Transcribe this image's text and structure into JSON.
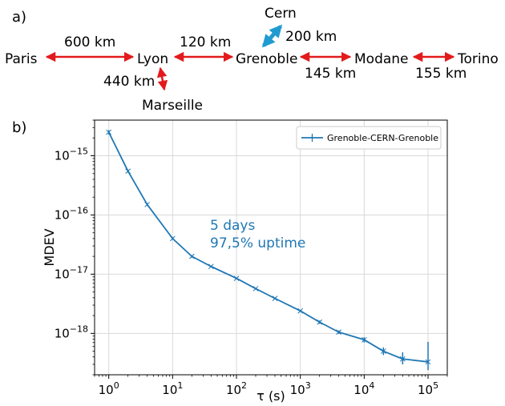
{
  "panel_a": {
    "label": "a)",
    "cities": [
      "Paris",
      "Lyon",
      "Grenoble",
      "Modane",
      "Torino",
      "Marseille",
      "Cern"
    ],
    "distances": [
      "600 km",
      "120 km",
      "145 km",
      "155 km",
      "440 km",
      "200 km"
    ],
    "colors": {
      "link": "#e31a1c",
      "cern_link": "#1f9bd1"
    }
  },
  "panel_b": {
    "label": "b)"
  },
  "chart_data": {
    "type": "line",
    "xlabel": "τ (s)",
    "ylabel": "MDEV",
    "xscale": "log",
    "yscale": "log",
    "xlim": [
      0.6,
      200000
    ],
    "ylim": [
      2e-19,
      4e-15
    ],
    "grid": true,
    "legend_position": "top-right",
    "x_ticks": [
      {
        "value": 1,
        "base": "10",
        "exp": "0"
      },
      {
        "value": 10,
        "base": "10",
        "exp": "1"
      },
      {
        "value": 100,
        "base": "10",
        "exp": "2"
      },
      {
        "value": 1000,
        "base": "10",
        "exp": "3"
      },
      {
        "value": 10000,
        "base": "10",
        "exp": "4"
      },
      {
        "value": 100000,
        "base": "10",
        "exp": "5"
      }
    ],
    "y_ticks": [
      {
        "value": 1e-15,
        "base": "10",
        "exp": "−15"
      },
      {
        "value": 1e-16,
        "base": "10",
        "exp": "−16"
      },
      {
        "value": 1e-17,
        "base": "10",
        "exp": "−17"
      },
      {
        "value": 1e-18,
        "base": "10",
        "exp": "−18"
      }
    ],
    "series": [
      {
        "name": "Grenoble-CERN-Grenoble",
        "color": "#1f77b4",
        "points": [
          {
            "x": 1,
            "y": 2.5e-15,
            "err": [
              2.3e-15,
              2.7e-15
            ]
          },
          {
            "x": 2,
            "y": 5.5e-16,
            "err": [
              5.2e-16,
              5.8e-16
            ]
          },
          {
            "x": 4,
            "y": 1.5e-16,
            "err": [
              1.42e-16,
              1.58e-16
            ]
          },
          {
            "x": 10,
            "y": 4e-17,
            "err": [
              3.8e-17,
              4.2e-17
            ]
          },
          {
            "x": 20,
            "y": 2e-17,
            "err": [
              1.9e-17,
              2.1e-17
            ]
          },
          {
            "x": 40,
            "y": 1.35e-17,
            "err": [
              1.3e-17,
              1.4e-17
            ]
          },
          {
            "x": 100,
            "y": 8.5e-18,
            "err": [
              8.2e-18,
              8.8e-18
            ]
          },
          {
            "x": 200,
            "y": 5.7e-18,
            "err": [
              5.5e-18,
              5.9e-18
            ]
          },
          {
            "x": 400,
            "y": 3.9e-18,
            "err": [
              3.75e-18,
              4.05e-18
            ]
          },
          {
            "x": 1000,
            "y": 2.4e-18,
            "err": [
              2.3e-18,
              2.5e-18
            ]
          },
          {
            "x": 2000,
            "y": 1.55e-18,
            "err": [
              1.45e-18,
              1.65e-18
            ]
          },
          {
            "x": 4000,
            "y": 1.05e-18,
            "err": [
              9.8e-19,
              1.12e-18
            ]
          },
          {
            "x": 10000,
            "y": 7.8e-19,
            "err": [
              7e-19,
              8.6e-19
            ]
          },
          {
            "x": 20000,
            "y": 5e-19,
            "err": [
              4.3e-19,
              5.8e-19
            ]
          },
          {
            "x": 40000,
            "y": 3.7e-19,
            "err": [
              3e-19,
              4.8e-19
            ]
          },
          {
            "x": 100000,
            "y": 3.3e-19,
            "err": [
              2.4e-19,
              7.2e-19
            ]
          }
        ]
      }
    ],
    "annotations": [
      {
        "text": "5 days",
        "color": "#1f77b4"
      },
      {
        "text": "97,5% uptime",
        "color": "#1f77b4"
      }
    ]
  }
}
